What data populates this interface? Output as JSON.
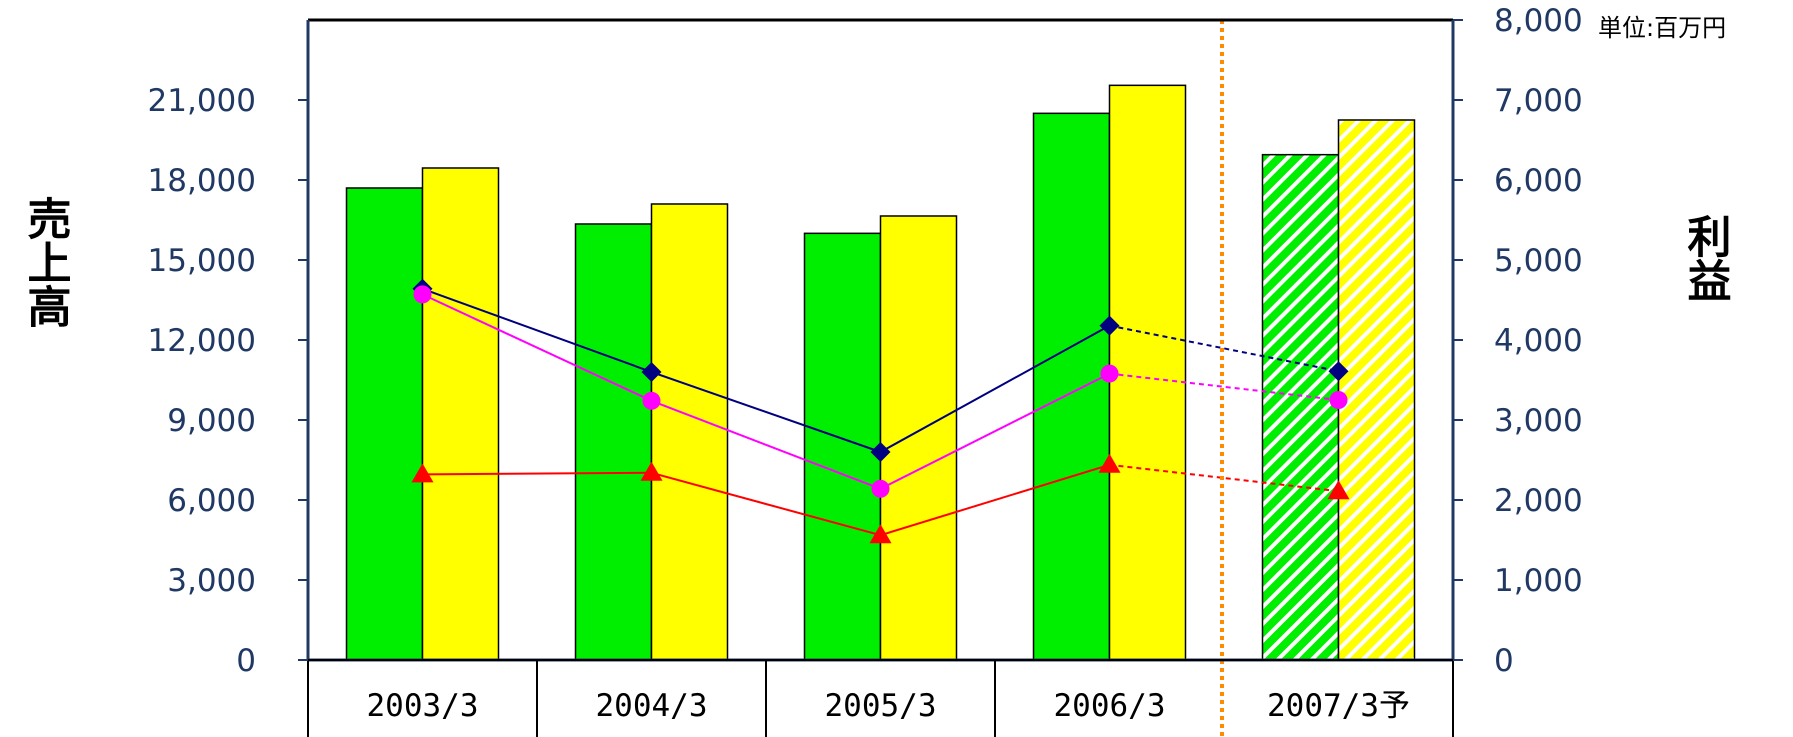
{
  "chart_data": {
    "type": "bar",
    "categories": [
      "2003/3",
      "2004/3",
      "2005/3",
      "2006/3",
      "2007/3予"
    ],
    "forecast_index": 4,
    "unit_label": "単位:百万円",
    "y_left": {
      "label": "売上高",
      "range": [
        0,
        24000
      ],
      "ticks": [
        "0",
        "3,000",
        "6,000",
        "9,000",
        "12,000",
        "15,000",
        "18,000",
        "21,000"
      ]
    },
    "y_right": {
      "label": "利益",
      "range": [
        0,
        8000
      ],
      "ticks": [
        "0",
        "1,000",
        "2,000",
        "3,000",
        "4,000",
        "5,000",
        "6,000",
        "7,000",
        "8,000"
      ]
    },
    "bar_series": [
      {
        "axis": "left",
        "color": "#00ee00",
        "values": [
          17700,
          16350,
          16000,
          20500,
          18950
        ]
      },
      {
        "axis": "left",
        "color": "#ffff00",
        "values": [
          18450,
          17100,
          16650,
          21550,
          20250
        ]
      }
    ],
    "line_series": [
      {
        "axis": "right",
        "color": "#000080",
        "marker": "diamond",
        "values": [
          4640,
          3600,
          2600,
          4180,
          3610
        ]
      },
      {
        "axis": "right",
        "color": "#ff00ff",
        "marker": "circle",
        "values": [
          4570,
          3240,
          2140,
          3580,
          3250
        ]
      },
      {
        "axis": "right",
        "color": "#ff0000",
        "marker": "triangle",
        "values": [
          2320,
          2340,
          1560,
          2440,
          2110
        ]
      }
    ],
    "grid": false,
    "legend": "none"
  }
}
